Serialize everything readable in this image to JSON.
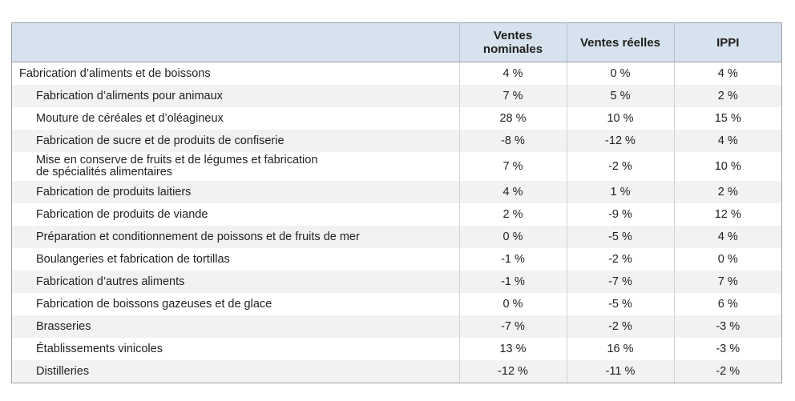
{
  "table": {
    "headers": [
      "",
      "Ventes nominales",
      "Ventes réelles",
      "IPPI"
    ],
    "rows": [
      {
        "label": "Fabrication d’aliments et de boissons",
        "nominal": "4 %",
        "reel": "0 %",
        "ippi": "4 %"
      },
      {
        "label": "Fabrication d’aliments pour animaux",
        "nominal": "7 %",
        "reel": "5 %",
        "ippi": "2 %"
      },
      {
        "label": "Mouture de céréales et d’oléagineux",
        "nominal": "28 %",
        "reel": "10 %",
        "ippi": "15 %"
      },
      {
        "label": "Fabrication de sucre et de produits de confiserie",
        "nominal": "-8 %",
        "reel": "-12 %",
        "ippi": "4 %"
      },
      {
        "label_line1": "Mise en conserve de fruits et de légumes et fabrication",
        "label_line2": "de spécialités alimentaires",
        "nominal": "7 %",
        "reel": "-2 %",
        "ippi": "10 %"
      },
      {
        "label": "Fabrication de produits laitiers",
        "nominal": "4 %",
        "reel": "1 %",
        "ippi": "2 %"
      },
      {
        "label": "Fabrication de produits de viande",
        "nominal": "2 %",
        "reel": "-9 %",
        "ippi": "12 %"
      },
      {
        "label": "Préparation et conditionnement de poissons et de fruits de mer",
        "nominal": "0 %",
        "reel": "-5 %",
        "ippi": "4 %"
      },
      {
        "label": "Boulangeries et fabrication de tortillas",
        "nominal": "-1 %",
        "reel": "-2 %",
        "ippi": "0 %"
      },
      {
        "label": "Fabrication d’autres aliments",
        "nominal": "-1 %",
        "reel": "-7 %",
        "ippi": "7 %"
      },
      {
        "label": "Fabrication de boissons gazeuses et de glace",
        "nominal": "0 %",
        "reel": "-5 %",
        "ippi": "6 %"
      },
      {
        "label": "Brasseries",
        "nominal": "-7 %",
        "reel": "-2 %",
        "ippi": "-3 %"
      },
      {
        "label": "Établissements vinicoles",
        "nominal": "13 %",
        "reel": "16 %",
        "ippi": "-3 %"
      },
      {
        "label": "Distilleries",
        "nominal": "-12 %",
        "reel": "-11 %",
        "ippi": "-2 %"
      }
    ]
  }
}
